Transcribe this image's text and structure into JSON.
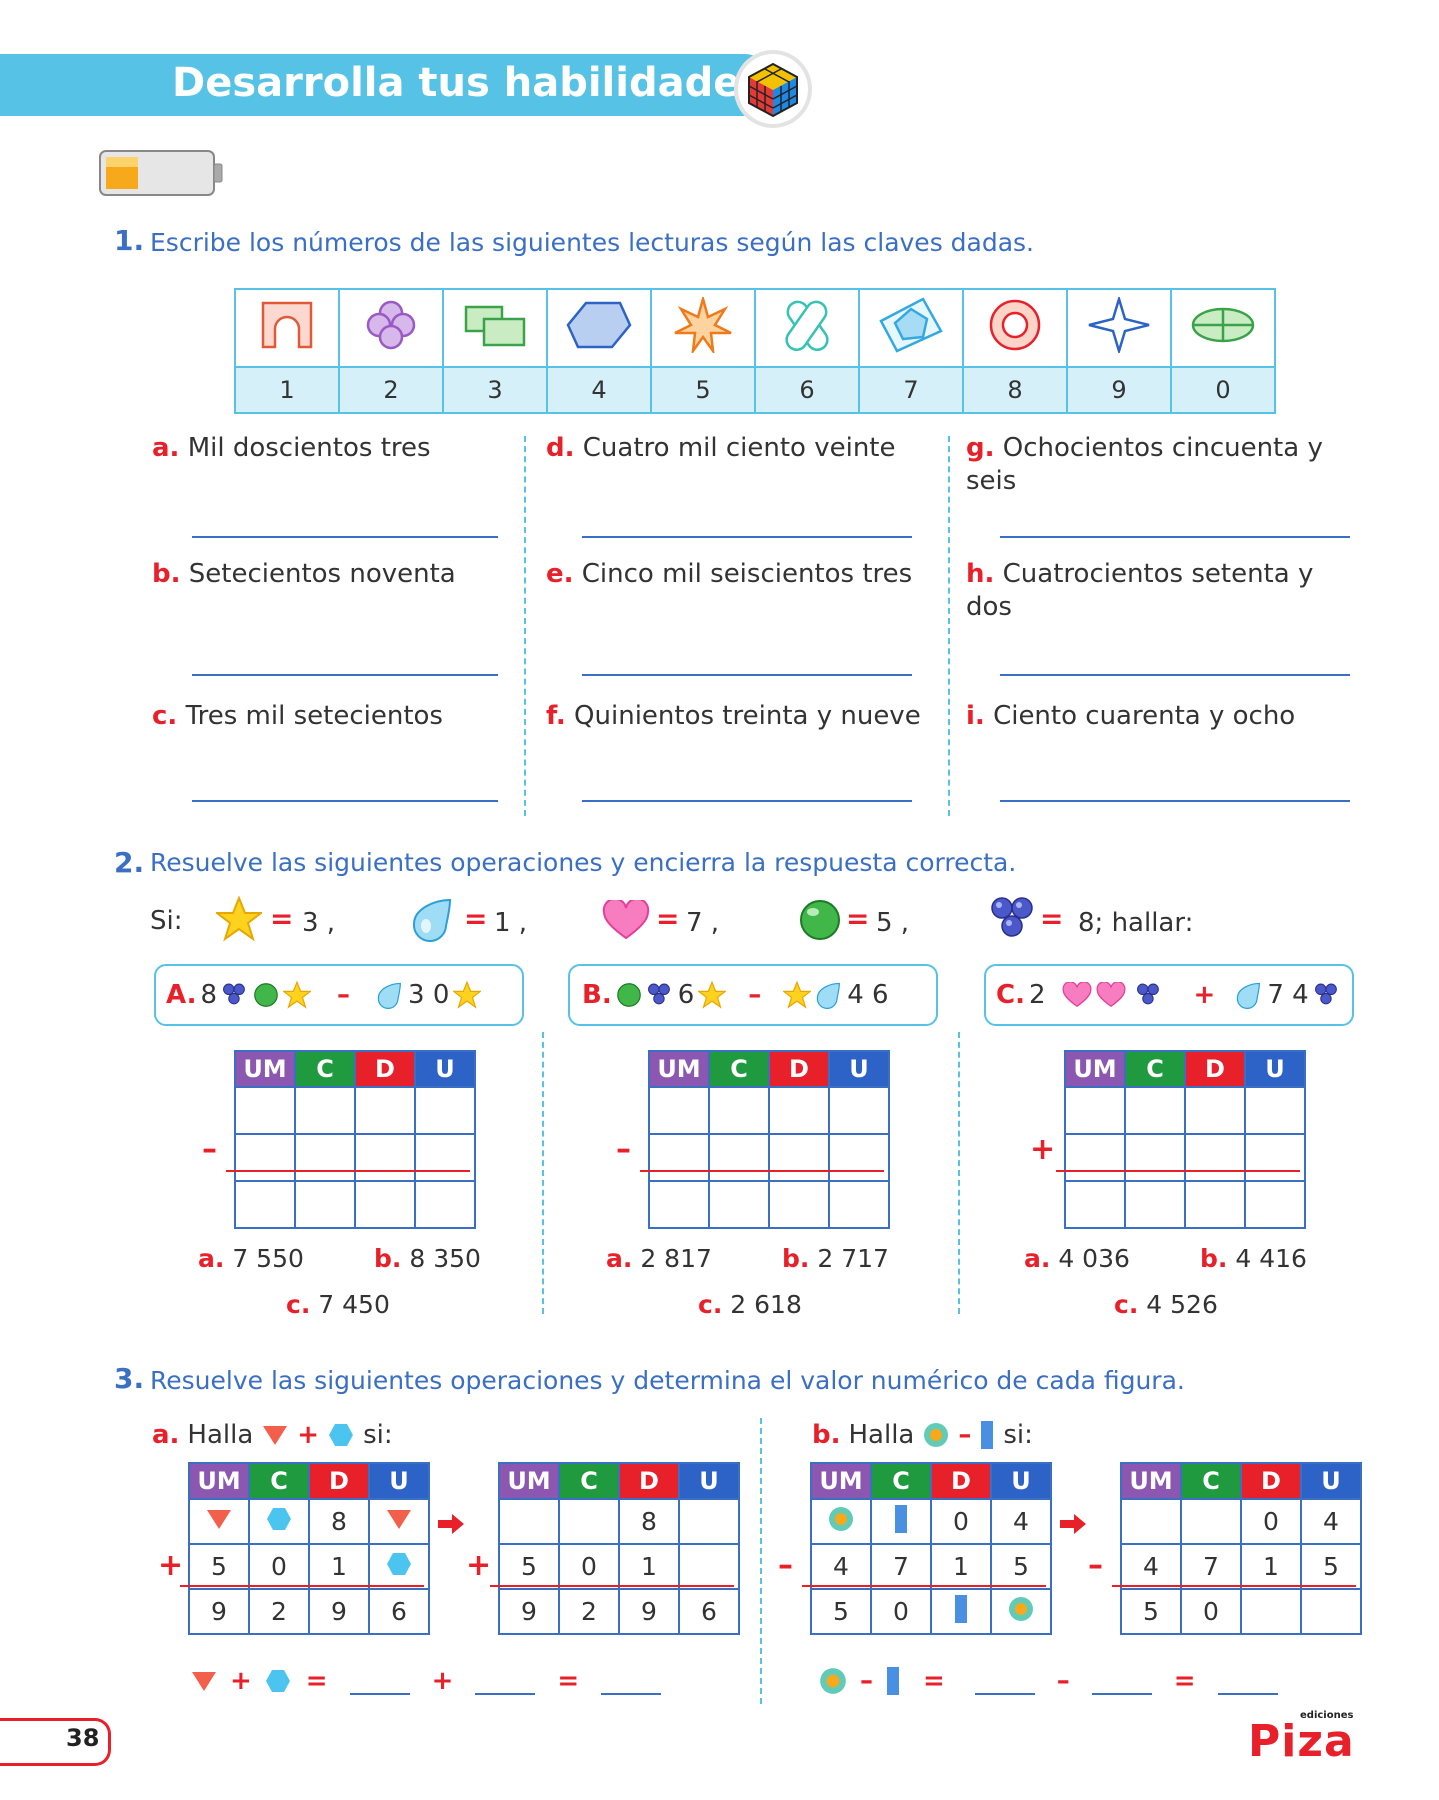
{
  "header": {
    "title": "Desarrolla tus habilidades"
  },
  "q1": {
    "number": "1.",
    "text": "Escribe los números de las siguientes lecturas según las claves dadas.",
    "key": [
      {
        "icon": "arch-shape-icon",
        "value": "1"
      },
      {
        "icon": "flower-shape-icon",
        "value": "2"
      },
      {
        "icon": "overlapping-rectangles-icon",
        "value": "3"
      },
      {
        "icon": "hexagon-shape-icon",
        "value": "4"
      },
      {
        "icon": "star-burst-icon",
        "value": "5"
      },
      {
        "icon": "crossed-ribbon-icon",
        "value": "6"
      },
      {
        "icon": "pinwheel-pentagon-icon",
        "value": "7"
      },
      {
        "icon": "target-circle-icon",
        "value": "8"
      },
      {
        "icon": "four-point-star-icon",
        "value": "9"
      },
      {
        "icon": "divided-ellipse-icon",
        "value": "0"
      }
    ],
    "items": [
      {
        "letter": "a.",
        "text": "Mil doscientos tres"
      },
      {
        "letter": "b.",
        "text": "Setecientos  noventa"
      },
      {
        "letter": "c.",
        "text": "Tres mil setecientos"
      },
      {
        "letter": "d.",
        "text": "Cuatro mil ciento veinte"
      },
      {
        "letter": "e.",
        "text": "Cinco mil seiscientos tres"
      },
      {
        "letter": "f.",
        "text": "Quinientos treinta y nueve"
      },
      {
        "letter": "g.",
        "text": "Ochocientos cincuenta y seis"
      },
      {
        "letter": "h.",
        "text": "Cuatrocientos  setenta  y dos"
      },
      {
        "letter": "i.",
        "text": "Ciento cuarenta y ocho"
      }
    ]
  },
  "q2": {
    "number": "2.",
    "text": "Resuelve las siguientes operaciones y encierra la respuesta correcta.",
    "si_label": "Si:",
    "values": [
      {
        "icon": "yellow-star-icon",
        "eq": "=",
        "val": "3 ,"
      },
      {
        "icon": "blue-drop-icon",
        "eq": "=",
        "val": "1 ,"
      },
      {
        "icon": "pink-heart-icon",
        "eq": "=",
        "val": "7 ,"
      },
      {
        "icon": "green-ball-icon",
        "eq": "=",
        "val": "5 ,"
      },
      {
        "icon": "grape-cluster-icon",
        "eq": "=",
        "val": "8; hallar:"
      }
    ],
    "headers": [
      "UM",
      "C",
      "D",
      "U"
    ],
    "ops": [
      {
        "label": "A.",
        "n1": "8",
        "d1": "3 0",
        "sign": "–",
        "options": [
          {
            "letter": "a.",
            "value": "7 550"
          },
          {
            "letter": "b.",
            "value": "8 350"
          },
          {
            "letter": "c.",
            "value": "7 450"
          }
        ]
      },
      {
        "label": "B.",
        "n1": "6",
        "d1": "4 6",
        "sign": "–",
        "options": [
          {
            "letter": "a.",
            "value": "2 817"
          },
          {
            "letter": "b.",
            "value": "2 717"
          },
          {
            "letter": "c.",
            "value": "2 618"
          }
        ]
      },
      {
        "label": "C.",
        "n1": "2",
        "d1": "7 4",
        "sign": "+",
        "options": [
          {
            "letter": "a.",
            "value": "4 036"
          },
          {
            "letter": "b.",
            "value": "4 416"
          },
          {
            "letter": "c.",
            "value": "4 526"
          }
        ]
      }
    ]
  },
  "q3": {
    "number": "3.",
    "text": "Resuelve las siguientes operaciones y determina el valor numérico de cada figura.",
    "a": {
      "letter": "a.",
      "halla": "Halla",
      "plus": "+",
      "si": "si:",
      "left_rows": [
        [
          "tri",
          "hex",
          "8",
          "tri"
        ],
        [
          "5",
          "0",
          "1",
          "hex"
        ],
        [
          "9",
          "2",
          "9",
          "6"
        ]
      ],
      "right_rows": [
        [
          "",
          "",
          "8",
          ""
        ],
        [
          "5",
          "0",
          "1",
          ""
        ],
        [
          "9",
          "2",
          "9",
          "6"
        ]
      ],
      "sign": "+",
      "result_eq": [
        "+",
        "=",
        "+",
        "="
      ]
    },
    "b": {
      "letter": "b.",
      "halla": "Halla",
      "minus": "–",
      "si": "si:",
      "left_rows": [
        [
          "dot",
          "bar",
          "0",
          "4"
        ],
        [
          "4",
          "7",
          "1",
          "5"
        ],
        [
          "5",
          "0",
          "bar",
          "dot"
        ]
      ],
      "right_rows": [
        [
          "",
          "",
          "0",
          "4"
        ],
        [
          "4",
          "7",
          "1",
          "5"
        ],
        [
          "5",
          "0",
          "",
          ""
        ]
      ],
      "sign": "–",
      "result_eq": [
        "–",
        "=",
        "–",
        "="
      ]
    }
  },
  "footer": {
    "page": "38",
    "brand": "Piza",
    "brand_small": "ediciones"
  },
  "colors": {
    "accent": "#55c2e6",
    "text_blue": "#3a6fc4",
    "red": "#e8202a"
  }
}
